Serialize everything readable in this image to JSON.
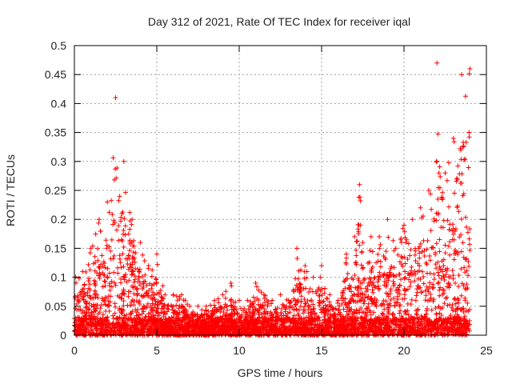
{
  "chart_data": {
    "type": "scatter",
    "title": "Day 312 of 2021, Rate Of TEC Index for receiver iqal",
    "xlabel": "GPS time / hours",
    "ylabel": "ROTI / TECUs",
    "xlim": [
      0,
      25
    ],
    "ylim": [
      0,
      0.5
    ],
    "x_ticks": [
      "0",
      "5",
      "10",
      "15",
      "20",
      "25"
    ],
    "y_ticks": [
      "0",
      "0.05",
      "0.1",
      "0.15",
      "0.2",
      "0.25",
      "0.3",
      "0.35",
      "0.4",
      "0.45",
      "0.5"
    ],
    "grid": true,
    "marker": "+",
    "series": [
      {
        "name": "ROTI",
        "color": "#ff0000",
        "envelope": [
          [
            0.0,
            0.1
          ],
          [
            0.5,
            0.11
          ],
          [
            1.0,
            0.15
          ],
          [
            1.5,
            0.2
          ],
          [
            2.0,
            0.23
          ],
          [
            2.5,
            0.41
          ],
          [
            3.0,
            0.3
          ],
          [
            3.5,
            0.2
          ],
          [
            4.0,
            0.16
          ],
          [
            4.5,
            0.12
          ],
          [
            5.0,
            0.14
          ],
          [
            5.5,
            0.07
          ],
          [
            6.0,
            0.07
          ],
          [
            6.5,
            0.07
          ],
          [
            7.0,
            0.05
          ],
          [
            7.5,
            0.05
          ],
          [
            8.0,
            0.05
          ],
          [
            8.5,
            0.06
          ],
          [
            9.0,
            0.07
          ],
          [
            9.5,
            0.09
          ],
          [
            10.0,
            0.06
          ],
          [
            10.5,
            0.06
          ],
          [
            11.0,
            0.09
          ],
          [
            11.5,
            0.07
          ],
          [
            12.0,
            0.06
          ],
          [
            12.5,
            0.07
          ],
          [
            13.0,
            0.06
          ],
          [
            13.5,
            0.15
          ],
          [
            14.0,
            0.12
          ],
          [
            14.5,
            0.1
          ],
          [
            15.0,
            0.12
          ],
          [
            15.5,
            0.07
          ],
          [
            16.0,
            0.06
          ],
          [
            16.5,
            0.14
          ],
          [
            17.0,
            0.17
          ],
          [
            17.3,
            0.26
          ],
          [
            17.5,
            0.16
          ],
          [
            18.0,
            0.17
          ],
          [
            18.5,
            0.17
          ],
          [
            19.0,
            0.2
          ],
          [
            19.5,
            0.15
          ],
          [
            20.0,
            0.19
          ],
          [
            20.5,
            0.2
          ],
          [
            21.0,
            0.22
          ],
          [
            21.5,
            0.25
          ],
          [
            22.0,
            0.47
          ],
          [
            22.5,
            0.28
          ],
          [
            23.0,
            0.34
          ],
          [
            23.5,
            0.45
          ],
          [
            24.0,
            0.46
          ]
        ],
        "floor_band": [
          0.0,
          0.03
        ],
        "point_count": 4500,
        "x_range": [
          0,
          24
        ]
      }
    ]
  }
}
